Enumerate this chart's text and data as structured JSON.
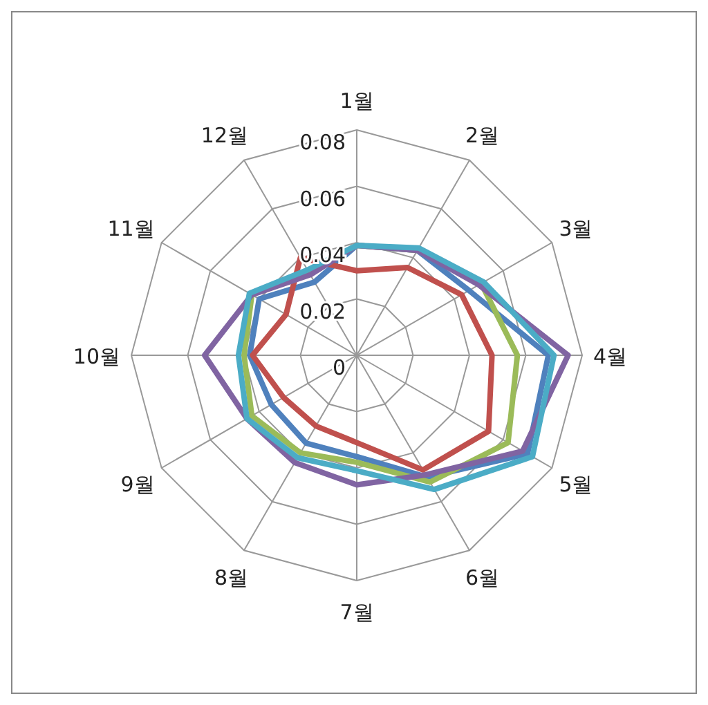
{
  "chart_data": {
    "type": "radar",
    "categories": [
      "1월",
      "2월",
      "3월",
      "4월",
      "5월",
      "6월",
      "7월",
      "8월",
      "9월",
      "10월",
      "11월",
      "12월"
    ],
    "series": [
      {
        "color": "#4f81bd",
        "values": [
          0.039,
          0.043,
          0.046,
          0.068,
          0.07,
          0.05,
          0.036,
          0.036,
          0.035,
          0.038,
          0.04,
          0.03
        ]
      },
      {
        "color": "#c0504d",
        "values": [
          0.03,
          0.036,
          0.043,
          0.048,
          0.054,
          0.047,
          0.031,
          0.029,
          0.03,
          0.037,
          0.029,
          0.04
        ]
      },
      {
        "color": "#9bbb59",
        "values": [
          0.039,
          0.043,
          0.051,
          0.057,
          0.062,
          0.052,
          0.038,
          0.04,
          0.043,
          0.04,
          0.043,
          0.034
        ]
      },
      {
        "color": "#8064a2",
        "values": [
          0.039,
          0.043,
          0.05,
          0.075,
          0.068,
          0.049,
          0.046,
          0.044,
          0.045,
          0.054,
          0.043,
          0.033
        ]
      },
      {
        "color": "#4bacc6",
        "values": [
          0.039,
          0.044,
          0.052,
          0.07,
          0.072,
          0.055,
          0.041,
          0.042,
          0.045,
          0.042,
          0.044,
          0.035
        ]
      }
    ],
    "ylim": [
      0,
      0.08
    ],
    "yticks": [
      0,
      0.02,
      0.04,
      0.06,
      0.08
    ],
    "grid": true
  }
}
